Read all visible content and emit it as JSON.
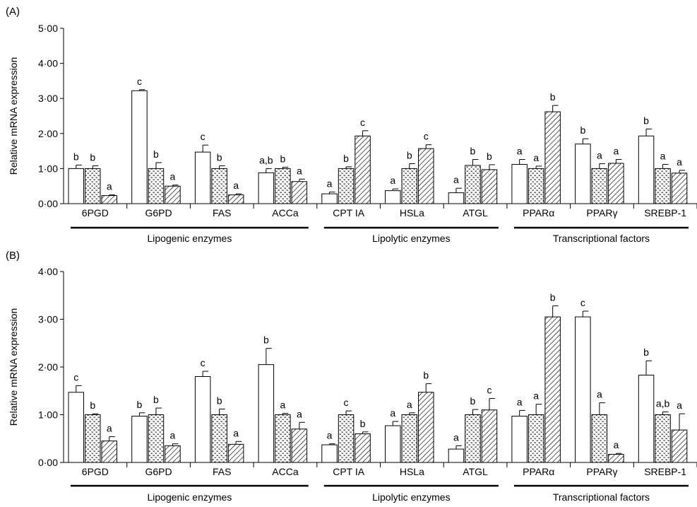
{
  "chart_data": [
    {
      "type": "bar",
      "panel_label": "(A)",
      "ylabel": "Relative mRNA expression",
      "ylim": [
        0,
        5
      ],
      "yticks": [
        0,
        1,
        2,
        3,
        4,
        5
      ],
      "ytick_labels": [
        "0·00",
        "1·00",
        "2·00",
        "3·00",
        "4·00",
        "5·00"
      ],
      "grid": false,
      "categories": [
        "6PGD",
        "G6PD",
        "FAS",
        "ACCa",
        "CPT IA",
        "HSLa",
        "ATGL",
        "PPARα",
        "PPARγ",
        "SREBP-1"
      ],
      "groups": [
        {
          "label": "Lipogenic enzymes",
          "categories": [
            "6PGD",
            "G6PD",
            "FAS",
            "ACCa"
          ]
        },
        {
          "label": "Lipolytic enzymes",
          "categories": [
            "CPT IA",
            "HSLa",
            "ATGL"
          ]
        },
        {
          "label": "Transcriptional factors",
          "categories": [
            "PPARα",
            "PPARγ",
            "SREBP-1"
          ]
        }
      ],
      "series": [
        {
          "pattern": "open",
          "values": [
            1.0,
            3.22,
            1.47,
            0.88,
            0.28,
            0.37,
            0.31,
            1.12,
            1.7,
            1.93
          ],
          "errors": [
            0.1,
            0.03,
            0.2,
            0.12,
            0.05,
            0.05,
            0.13,
            0.14,
            0.15,
            0.2
          ],
          "letters": [
            "b",
            "c",
            "c",
            "a,b",
            "a",
            "a",
            "a",
            "a",
            "b",
            "b"
          ]
        },
        {
          "pattern": "dotted",
          "values": [
            1.0,
            1.0,
            1.0,
            1.0,
            1.0,
            1.0,
            1.09,
            1.0,
            1.0,
            1.0
          ],
          "errors": [
            0.08,
            0.17,
            0.08,
            0.04,
            0.05,
            0.14,
            0.17,
            0.07,
            0.14,
            0.12
          ],
          "letters": [
            "b",
            "b",
            "b",
            "b",
            "b",
            "b",
            "b",
            "a",
            "a",
            "a"
          ]
        },
        {
          "pattern": "hatched",
          "values": [
            0.23,
            0.5,
            0.25,
            0.63,
            1.93,
            1.57,
            0.97,
            2.62,
            1.15,
            0.87
          ],
          "errors": [
            0.02,
            0.03,
            0.03,
            0.07,
            0.15,
            0.11,
            0.14,
            0.18,
            0.11,
            0.08
          ],
          "letters": [
            "a",
            "a",
            "a",
            "a",
            "c",
            "c",
            "b",
            "b",
            "a",
            "a"
          ]
        }
      ]
    },
    {
      "type": "bar",
      "panel_label": "(B)",
      "ylabel": "Relative mRNA expression",
      "ylim": [
        0,
        4
      ],
      "yticks": [
        0,
        1,
        2,
        3,
        4
      ],
      "ytick_labels": [
        "0·00",
        "1·00",
        "2·00",
        "3·00",
        "4·00"
      ],
      "grid": false,
      "categories": [
        "6PGD",
        "G6PD",
        "FAS",
        "ACCa",
        "CPT IA",
        "HSLa",
        "ATGL",
        "PPARα",
        "PPARγ",
        "SREBP-1"
      ],
      "groups": [
        {
          "label": "Lipogenic enzymes",
          "categories": [
            "6PGD",
            "G6PD",
            "FAS",
            "ACCa"
          ]
        },
        {
          "label": "Lipolytic enzymes",
          "categories": [
            "CPT IA",
            "HSLa",
            "ATGL"
          ]
        },
        {
          "label": "Transcriptional factors",
          "categories": [
            "PPARα",
            "PPARγ",
            "SREBP-1"
          ]
        }
      ],
      "series": [
        {
          "pattern": "open",
          "values": [
            1.47,
            0.97,
            1.8,
            2.05,
            0.37,
            0.77,
            0.28,
            0.97,
            3.05,
            1.83
          ],
          "errors": [
            0.14,
            0.07,
            0.11,
            0.34,
            0.02,
            0.09,
            0.07,
            0.12,
            0.12,
            0.3
          ],
          "letters": [
            "c",
            "b",
            "c",
            "b",
            "a",
            "a",
            "a",
            "a",
            "c",
            "b"
          ]
        },
        {
          "pattern": "dotted",
          "values": [
            1.0,
            1.0,
            1.0,
            1.0,
            1.0,
            1.0,
            1.0,
            1.0,
            1.0,
            1.0
          ],
          "errors": [
            0.02,
            0.14,
            0.12,
            0.03,
            0.08,
            0.04,
            0.11,
            0.22,
            0.25,
            0.06
          ],
          "letters": [
            "b",
            "b",
            "b",
            "a",
            "c",
            "a",
            "b",
            "a",
            "a",
            "a,b"
          ]
        },
        {
          "pattern": "hatched",
          "values": [
            0.45,
            0.35,
            0.38,
            0.7,
            0.6,
            1.47,
            1.1,
            3.05,
            0.17,
            0.68
          ],
          "errors": [
            0.09,
            0.04,
            0.06,
            0.14,
            0.04,
            0.18,
            0.24,
            0.23,
            0.02,
            0.34
          ],
          "letters": [
            "a",
            "a",
            "a",
            "a",
            "b",
            "b",
            "c",
            "b",
            "a",
            "a"
          ]
        }
      ]
    }
  ]
}
